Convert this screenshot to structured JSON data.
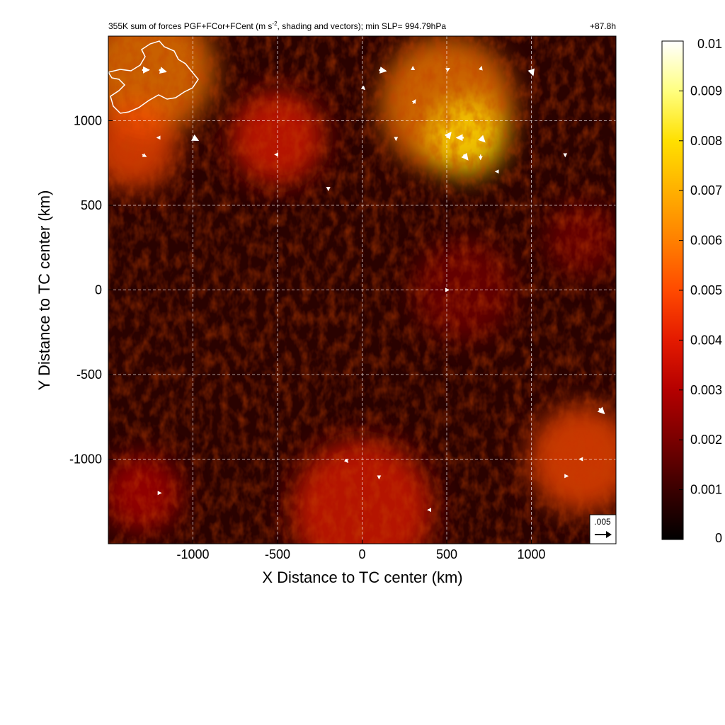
{
  "chart_data": {
    "type": "heatmap",
    "title_main": "355K sum of forces PGF+FCor+FCent (m s",
    "title_exp": "-2",
    "title_rest": ", shading and vectors); min SLP= 994.79hPa",
    "time_label": "+87.8h",
    "xlabel": "X Distance to TC center (km)",
    "ylabel": "Y Distance to TC center (km)",
    "xlim": [
      -1500,
      1500
    ],
    "ylim": [
      -1500,
      1500
    ],
    "xticks": [
      -1000,
      -500,
      0,
      500,
      1000
    ],
    "xtick_labels": [
      "-1000",
      "-500",
      "0",
      "500",
      "1000"
    ],
    "yticks": [
      -1000,
      -500,
      0,
      500,
      1000
    ],
    "ytick_labels": [
      "-1000",
      "-500",
      "0",
      "500",
      "1000"
    ],
    "grid": true,
    "colorbar": {
      "min": 0,
      "max": 0.01,
      "ticks": [
        0,
        0.001,
        0.002,
        0.003,
        0.004,
        0.005,
        0.006,
        0.007,
        0.008,
        0.009,
        0.01
      ],
      "tick_labels": [
        "0",
        "0.001",
        "0.002",
        "0.003",
        "0.004",
        "0.005",
        "0.006",
        "0.007",
        "0.008",
        "0.009",
        "0.01"
      ],
      "colors": [
        "#000000",
        "#3a0000",
        "#7a0000",
        "#b40000",
        "#e41a00",
        "#ff4a00",
        "#ff8000",
        "#ffb000",
        "#ffe000",
        "#ffff80",
        "#ffffff"
      ]
    },
    "vector_reference": {
      "label": ".005",
      "magnitude": 0.005
    },
    "intensity_blobs": [
      {
        "x": 500,
        "y": 1100,
        "r": 400,
        "v": 0.006
      },
      {
        "x": 620,
        "y": 900,
        "r": 230,
        "v": 0.008
      },
      {
        "x": -1250,
        "y": 1300,
        "r": 380,
        "v": 0.006
      },
      {
        "x": -1350,
        "y": 850,
        "r": 260,
        "v": 0.005
      },
      {
        "x": 0,
        "y": -1300,
        "r": 420,
        "v": 0.004
      },
      {
        "x": 1300,
        "y": -1000,
        "r": 320,
        "v": 0.005
      },
      {
        "x": -1300,
        "y": -1200,
        "r": 230,
        "v": 0.003
      },
      {
        "x": 600,
        "y": 0,
        "r": 300,
        "v": 0.002
      },
      {
        "x": -500,
        "y": 900,
        "r": 280,
        "v": 0.0035
      },
      {
        "x": 1300,
        "y": 300,
        "r": 220,
        "v": 0.002
      }
    ],
    "vectors": [
      {
        "x": -1300,
        "y": 1300,
        "u": 0.002,
        "v": 0.0
      },
      {
        "x": -1200,
        "y": 1300,
        "u": 0.002,
        "v": -0.0005
      },
      {
        "x": -1000,
        "y": 900,
        "u": 0.0015,
        "v": -0.0008
      },
      {
        "x": -1300,
        "y": 800,
        "u": 0.0012,
        "v": -0.0006
      },
      {
        "x": 100,
        "y": 1300,
        "u": 0.002,
        "v": -0.0003
      },
      {
        "x": 0,
        "y": 1200,
        "u": 0.0008,
        "v": -0.0008
      },
      {
        "x": 300,
        "y": 1100,
        "u": 0.0008,
        "v": 0.0012
      },
      {
        "x": 500,
        "y": 1300,
        "u": 0.0008,
        "v": 0.0005
      },
      {
        "x": 500,
        "y": 900,
        "u": 0.0012,
        "v": 0.0015
      },
      {
        "x": 600,
        "y": 900,
        "u": -0.002,
        "v": 0.0
      },
      {
        "x": 700,
        "y": 900,
        "u": 0.0012,
        "v": -0.0012
      },
      {
        "x": 600,
        "y": 800,
        "u": 0.0012,
        "v": -0.0015
      },
      {
        "x": 700,
        "y": 800,
        "u": 0.0,
        "v": -0.0015
      },
      {
        "x": 1000,
        "y": 1300,
        "u": 0.0005,
        "v": -0.0015
      },
      {
        "x": 300,
        "y": 1300,
        "u": 0.0,
        "v": 0.001
      },
      {
        "x": 700,
        "y": 1300,
        "u": 0.0003,
        "v": 0.001
      },
      {
        "x": 200,
        "y": 900,
        "u": 0.0,
        "v": -0.0008
      },
      {
        "x": -100,
        "y": -1000,
        "u": 0.0008,
        "v": -0.001
      },
      {
        "x": 100,
        "y": -1100,
        "u": 0.0,
        "v": -0.0008
      },
      {
        "x": 1400,
        "y": -700,
        "u": 0.0015,
        "v": -0.0015
      },
      {
        "x": 1300,
        "y": -1000,
        "u": -0.0008,
        "v": 0.0
      },
      {
        "x": 1200,
        "y": -1100,
        "u": 0.0008,
        "v": 0.0
      },
      {
        "x": 500,
        "y": 0,
        "u": 0.0006,
        "v": 0.0
      },
      {
        "x": -500,
        "y": 800,
        "u": -0.0008,
        "v": 0.0
      },
      {
        "x": -200,
        "y": 600,
        "u": 0.0,
        "v": -0.0006
      },
      {
        "x": -1200,
        "y": 900,
        "u": -0.0006,
        "v": 0.0
      },
      {
        "x": 800,
        "y": 700,
        "u": -0.0006,
        "v": 0.0
      },
      {
        "x": 1200,
        "y": 800,
        "u": 0.0,
        "v": -0.0006
      },
      {
        "x": -1200,
        "y": -1200,
        "u": 0.0006,
        "v": 0.0
      },
      {
        "x": 400,
        "y": -1300,
        "u": -0.0006,
        "v": 0.0
      }
    ]
  }
}
